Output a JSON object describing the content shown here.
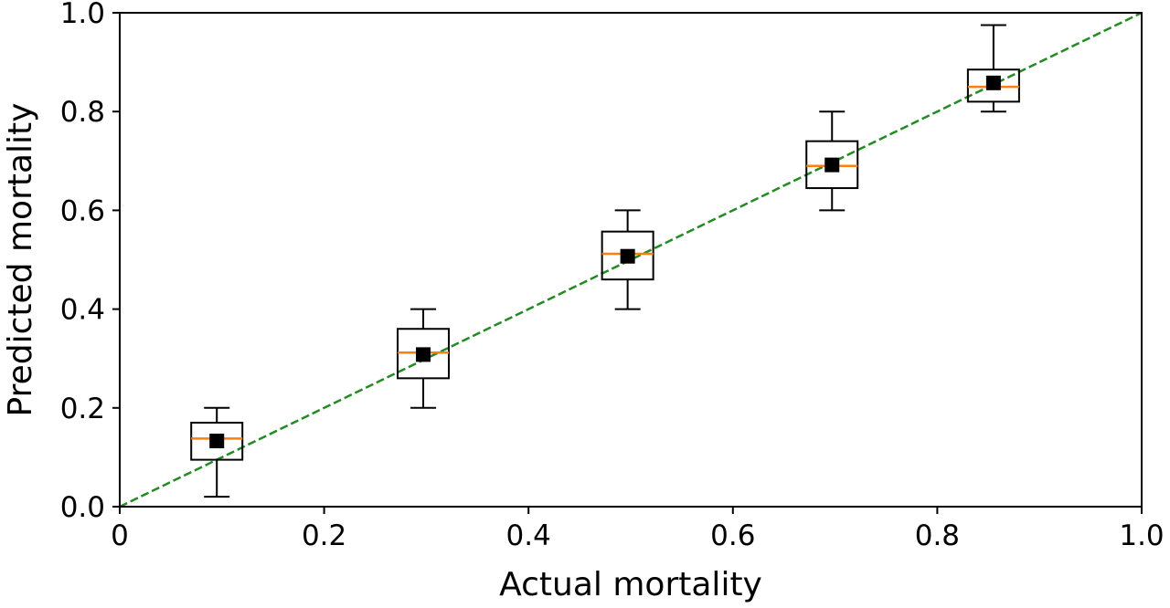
{
  "chart_data": {
    "type": "box",
    "title": "",
    "xlabel": "Actual mortality",
    "ylabel": "Predicted mortality",
    "xlim": [
      0,
      1.0
    ],
    "ylim": [
      0,
      1.0
    ],
    "xticks": [
      "0",
      "0.2",
      "0.4",
      "0.6",
      "0.8",
      "1.0"
    ],
    "yticks": [
      "0.0",
      "0.2",
      "0.4",
      "0.6",
      "0.8",
      "1.0"
    ],
    "grid": false,
    "reference_line": {
      "from": [
        0,
        0
      ],
      "to": [
        1.0,
        1.0
      ],
      "style": "dashed",
      "color": "#228b22"
    },
    "boxes": [
      {
        "x": 0.095,
        "whisker_low": 0.02,
        "q1": 0.095,
        "median": 0.138,
        "q3": 0.17,
        "whisker_high": 0.2,
        "mean": 0.133
      },
      {
        "x": 0.297,
        "whisker_low": 0.2,
        "q1": 0.26,
        "median": 0.312,
        "q3": 0.36,
        "whisker_high": 0.4,
        "mean": 0.308
      },
      {
        "x": 0.497,
        "whisker_low": 0.4,
        "q1": 0.46,
        "median": 0.512,
        "q3": 0.557,
        "whisker_high": 0.6,
        "mean": 0.507
      },
      {
        "x": 0.697,
        "whisker_low": 0.6,
        "q1": 0.645,
        "median": 0.69,
        "q3": 0.74,
        "whisker_high": 0.8,
        "mean": 0.692
      },
      {
        "x": 0.855,
        "whisker_low": 0.8,
        "q1": 0.82,
        "median": 0.85,
        "q3": 0.885,
        "whisker_high": 0.975,
        "mean": 0.858
      }
    ],
    "colors": {
      "box": "#000000",
      "median": "#ff7f0e",
      "mean_marker": "#000000",
      "reference": "#228b22"
    }
  }
}
